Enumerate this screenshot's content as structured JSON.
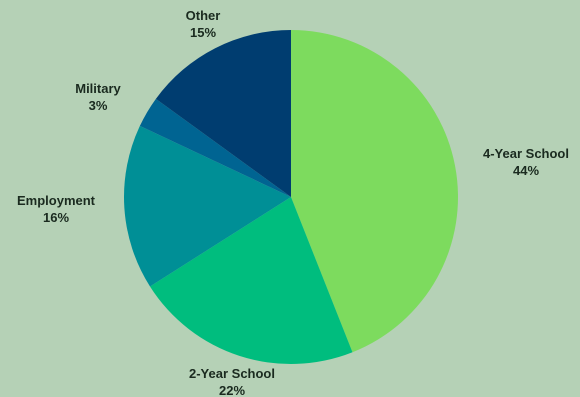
{
  "colors": {
    "background": "#b5d1b6"
  },
  "chart_data": {
    "type": "pie",
    "title": "",
    "slices": [
      {
        "label": "4-Year School",
        "value": 44,
        "value_label": "44%",
        "color": "#7ddb5e"
      },
      {
        "label": "2-Year School",
        "value": 22,
        "value_label": "22%",
        "color": "#00bd7e"
      },
      {
        "label": "Employment",
        "value": 16,
        "value_label": "16%",
        "color": "#008f96"
      },
      {
        "label": "Military",
        "value": 3,
        "value_label": "3%",
        "color": "#006492"
      },
      {
        "label": "Other",
        "value": 15,
        "value_label": "15%",
        "color": "#003d70"
      }
    ],
    "start_angle": "12 o'clock",
    "direction": "clockwise",
    "legend": "none"
  }
}
